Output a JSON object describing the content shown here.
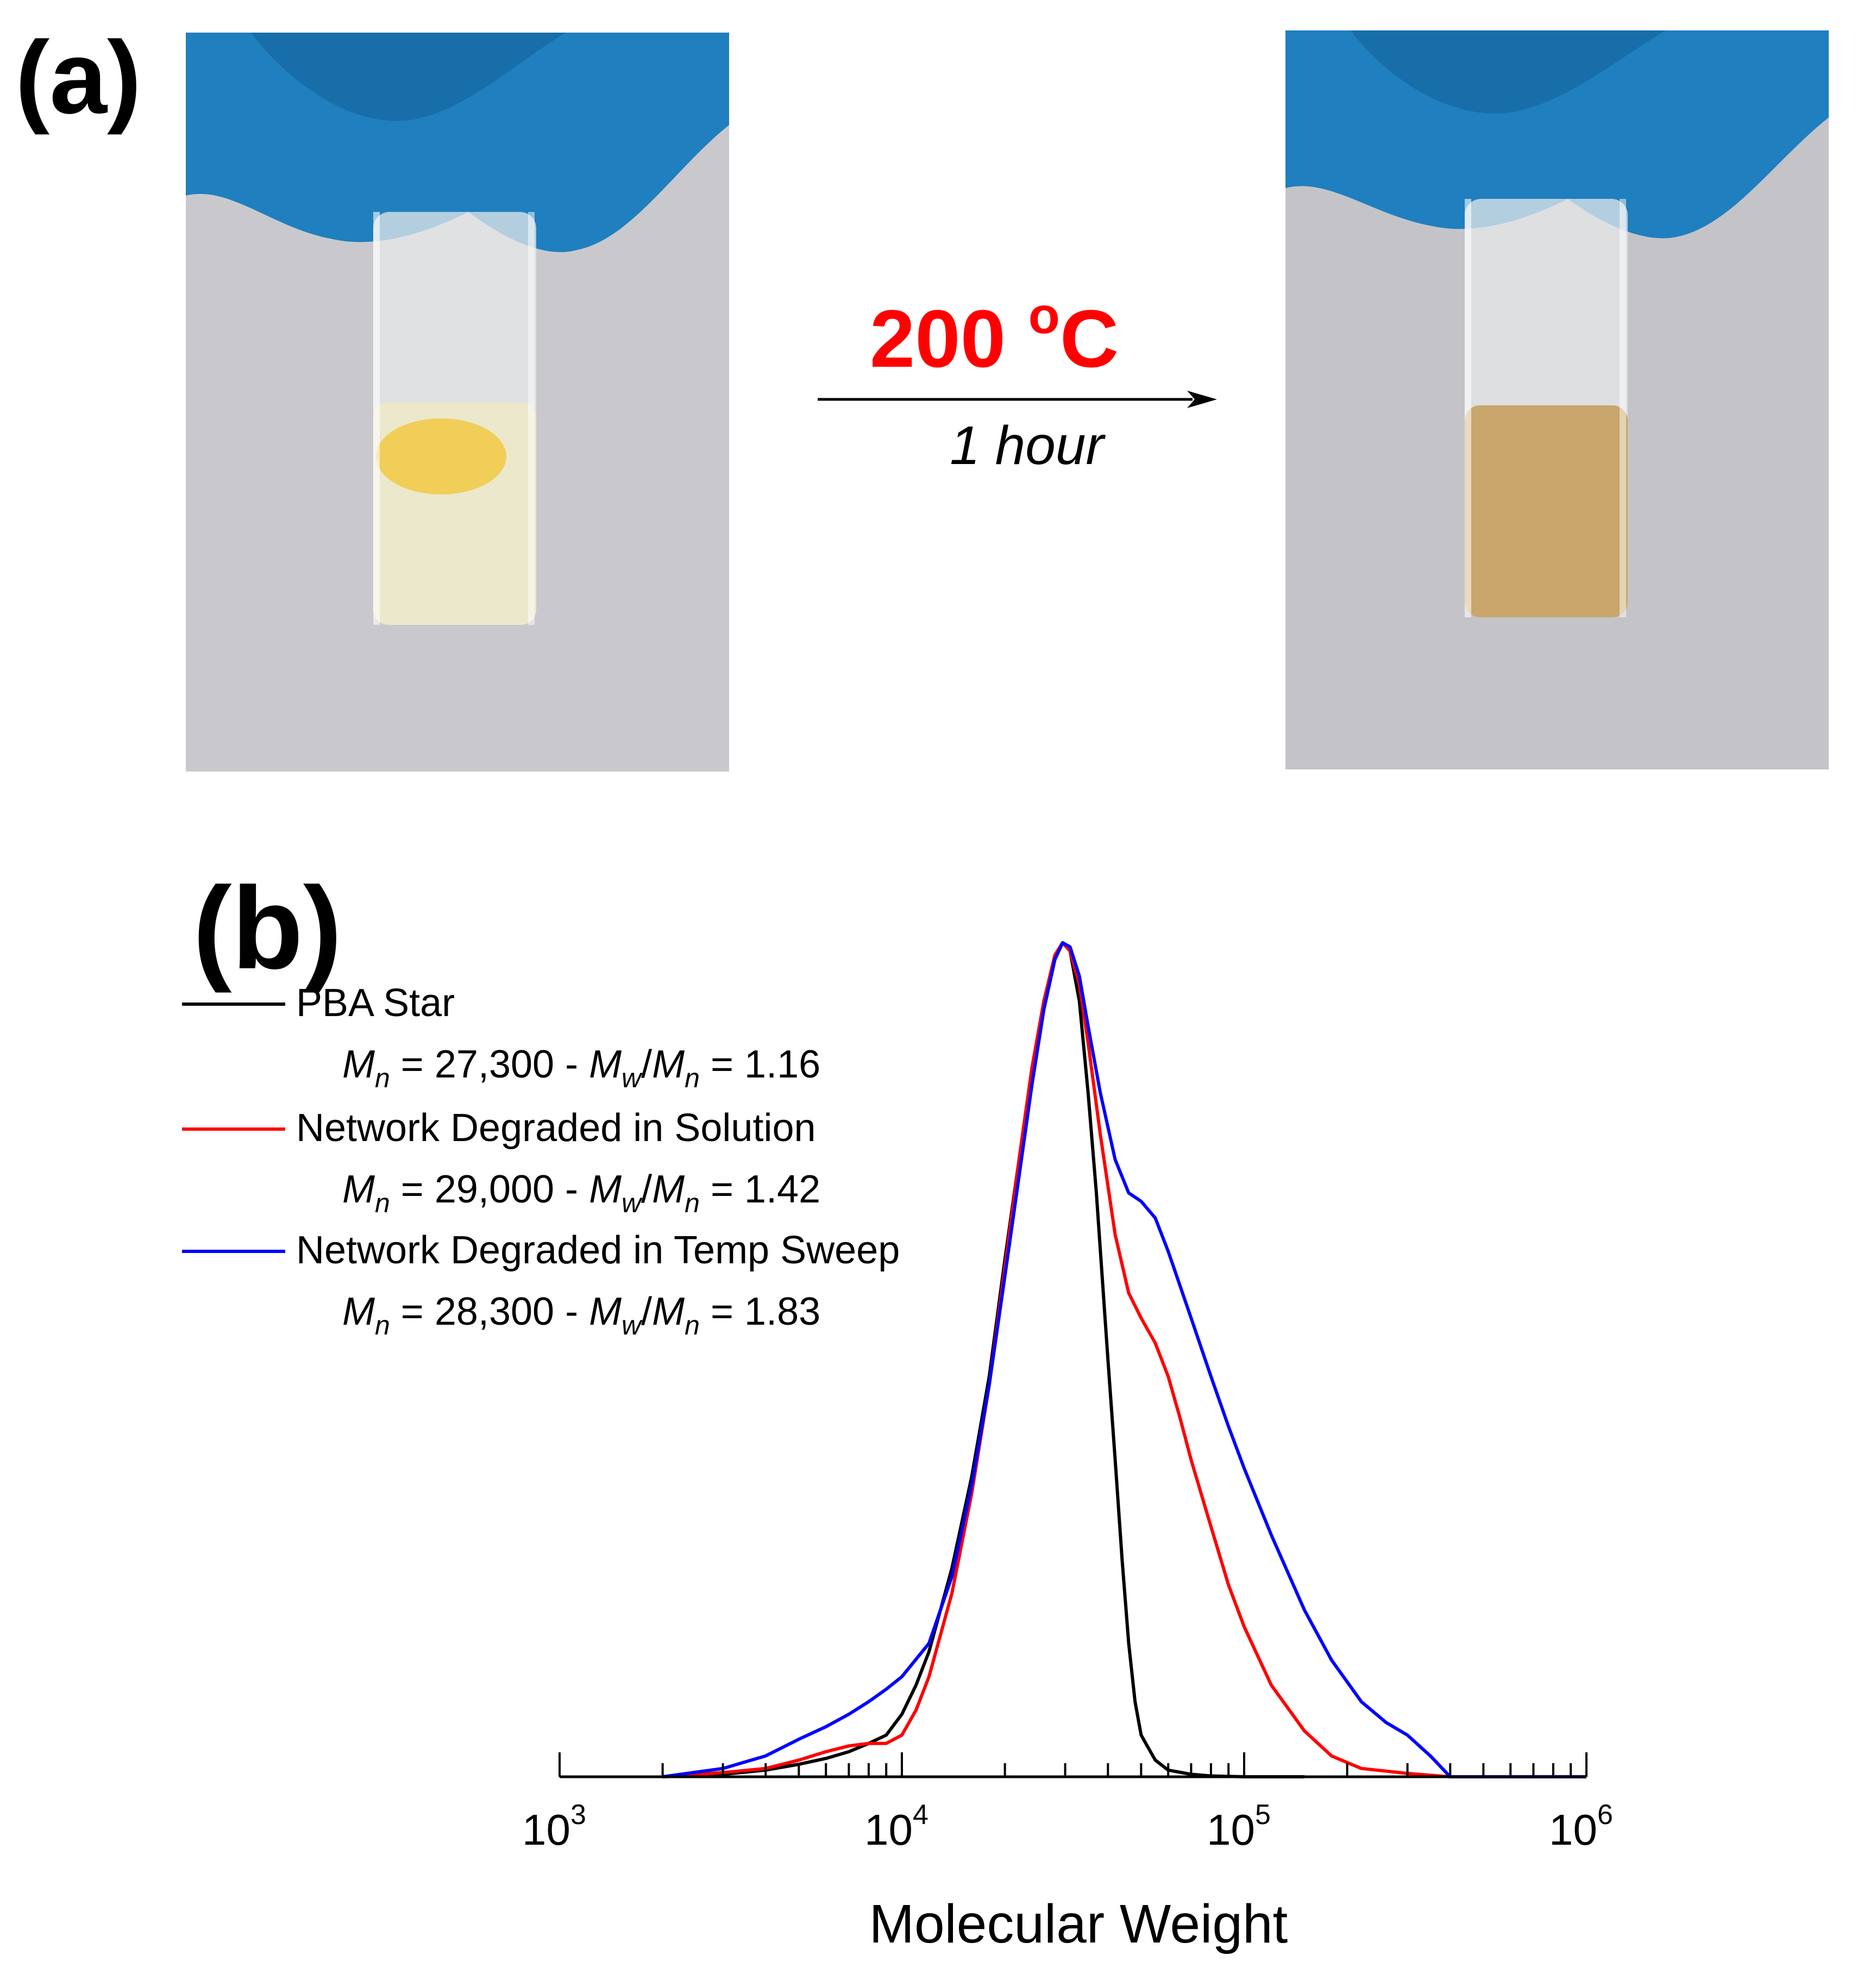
{
  "panel_a": {
    "label": "(a)",
    "photo_before": "vial-before-heating",
    "photo_after": "vial-after-heating",
    "condition_temp_value": "200 ",
    "condition_temp_degree": "o",
    "condition_temp_unit": "C",
    "condition_time": "1 hour"
  },
  "panel_b": {
    "label": "(b)"
  },
  "colors": {
    "pba_star": "#000000",
    "solution": "#ff0000",
    "temp_sweep": "#0000ff",
    "condition": "#ff0000"
  },
  "chart_data": {
    "type": "line",
    "xscale": "log",
    "xlabel": "Molecular Weight",
    "ylabel": "",
    "xlim": [
      1000,
      1000000
    ],
    "ylim": [
      0,
      1.0
    ],
    "x_ticks": [
      {
        "base": "10",
        "exp": "3"
      },
      {
        "base": "10",
        "exp": "4"
      },
      {
        "base": "10",
        "exp": "5"
      },
      {
        "base": "10",
        "exp": "6"
      }
    ],
    "series": [
      {
        "name": "PBA Star",
        "mn": "27,300",
        "pdi": "1.16",
        "color": "#000000",
        "points": [
          [
            2000,
            0.0
          ],
          [
            3000,
            0.003
          ],
          [
            4000,
            0.008
          ],
          [
            5000,
            0.015
          ],
          [
            6000,
            0.022
          ],
          [
            7000,
            0.03
          ],
          [
            8000,
            0.04
          ],
          [
            9000,
            0.05
          ],
          [
            10000,
            0.075
          ],
          [
            11000,
            0.11
          ],
          [
            12000,
            0.15
          ],
          [
            14000,
            0.25
          ],
          [
            16000,
            0.36
          ],
          [
            18000,
            0.48
          ],
          [
            20000,
            0.62
          ],
          [
            22000,
            0.74
          ],
          [
            24000,
            0.85
          ],
          [
            26000,
            0.93
          ],
          [
            28000,
            0.985
          ],
          [
            29500,
            1.0
          ],
          [
            31000,
            0.99
          ],
          [
            33000,
            0.93
          ],
          [
            35000,
            0.82
          ],
          [
            37000,
            0.7
          ],
          [
            40000,
            0.5
          ],
          [
            42000,
            0.38
          ],
          [
            44000,
            0.26
          ],
          [
            46000,
            0.16
          ],
          [
            48000,
            0.09
          ],
          [
            50000,
            0.05
          ],
          [
            55000,
            0.02
          ],
          [
            60000,
            0.008
          ],
          [
            70000,
            0.003
          ],
          [
            80000,
            0.001
          ],
          [
            100000,
            0.0
          ],
          [
            150000,
            0.0
          ]
        ]
      },
      {
        "name": "Network Degraded in Solution",
        "mn": "29,000",
        "pdi": "1.42",
        "color": "#ff0000",
        "points": [
          [
            2000,
            0.0
          ],
          [
            3000,
            0.005
          ],
          [
            4000,
            0.01
          ],
          [
            5000,
            0.02
          ],
          [
            6000,
            0.03
          ],
          [
            7000,
            0.037
          ],
          [
            8000,
            0.04
          ],
          [
            9000,
            0.04
          ],
          [
            10000,
            0.05
          ],
          [
            11000,
            0.08
          ],
          [
            12000,
            0.12
          ],
          [
            14000,
            0.22
          ],
          [
            16000,
            0.34
          ],
          [
            18000,
            0.47
          ],
          [
            20000,
            0.61
          ],
          [
            22000,
            0.74
          ],
          [
            24000,
            0.85
          ],
          [
            26000,
            0.93
          ],
          [
            28000,
            0.985
          ],
          [
            29500,
            1.0
          ],
          [
            31000,
            0.99
          ],
          [
            33000,
            0.95
          ],
          [
            35000,
            0.88
          ],
          [
            38000,
            0.77
          ],
          [
            42000,
            0.65
          ],
          [
            46000,
            0.58
          ],
          [
            50000,
            0.55
          ],
          [
            55000,
            0.52
          ],
          [
            60000,
            0.48
          ],
          [
            65000,
            0.43
          ],
          [
            70000,
            0.38
          ],
          [
            80000,
            0.3
          ],
          [
            90000,
            0.23
          ],
          [
            100000,
            0.18
          ],
          [
            120000,
            0.11
          ],
          [
            150000,
            0.055
          ],
          [
            180000,
            0.025
          ],
          [
            220000,
            0.01
          ],
          [
            300000,
            0.004
          ],
          [
            400000,
            0.0
          ],
          [
            1000000,
            0.0
          ]
        ]
      },
      {
        "name": "Network Degraded in Temp Sweep",
        "mn": "28,300",
        "pdi": "1.83",
        "color": "#0000ff",
        "points": [
          [
            2000,
            0.0
          ],
          [
            3000,
            0.01
          ],
          [
            4000,
            0.025
          ],
          [
            5000,
            0.045
          ],
          [
            6000,
            0.06
          ],
          [
            7000,
            0.075
          ],
          [
            8000,
            0.09
          ],
          [
            9000,
            0.105
          ],
          [
            10000,
            0.12
          ],
          [
            12000,
            0.16
          ],
          [
            14000,
            0.24
          ],
          [
            16000,
            0.35
          ],
          [
            18000,
            0.47
          ],
          [
            20000,
            0.6
          ],
          [
            22000,
            0.72
          ],
          [
            24000,
            0.83
          ],
          [
            26000,
            0.92
          ],
          [
            28000,
            0.98
          ],
          [
            29500,
            1.0
          ],
          [
            31000,
            0.995
          ],
          [
            33000,
            0.96
          ],
          [
            35000,
            0.9
          ],
          [
            38000,
            0.82
          ],
          [
            42000,
            0.74
          ],
          [
            46000,
            0.7
          ],
          [
            50000,
            0.69
          ],
          [
            55000,
            0.67
          ],
          [
            60000,
            0.63
          ],
          [
            70000,
            0.55
          ],
          [
            80000,
            0.48
          ],
          [
            90000,
            0.42
          ],
          [
            100000,
            0.37
          ],
          [
            120000,
            0.29
          ],
          [
            150000,
            0.2
          ],
          [
            180000,
            0.14
          ],
          [
            220000,
            0.09
          ],
          [
            260000,
            0.065
          ],
          [
            300000,
            0.05
          ],
          [
            350000,
            0.025
          ],
          [
            400000,
            0.0
          ],
          [
            1000000,
            0.0
          ]
        ]
      }
    ]
  }
}
